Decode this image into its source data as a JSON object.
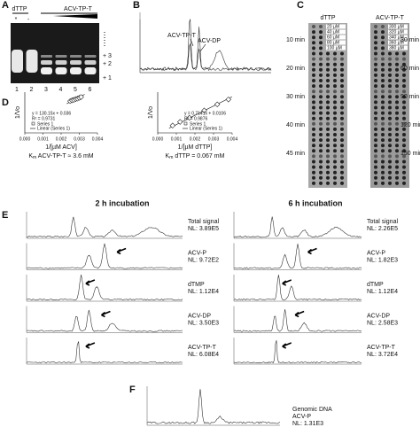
{
  "panel_a": {
    "label": "A",
    "dttp": "dTTP",
    "acv_tp_t": "ACV-TP-T",
    "marks": [
      "*",
      "-"
    ],
    "lanes": [
      "1",
      "2",
      "3",
      "4",
      "5",
      "6"
    ],
    "bands": [
      "+ 3",
      "+ 2",
      "+ 1"
    ]
  },
  "panel_b": {
    "label": "B",
    "peaks": [
      "ACV-TP-T",
      "ACV-DP"
    ]
  },
  "panel_c": {
    "label": "C",
    "strips": [
      {
        "title": "dTTP",
        "concentrations": [
          "20 µM",
          "40 µM",
          "60 µM",
          "80 µM",
          "100 µM"
        ],
        "times": [
          "10 min",
          "20 min",
          "30 min",
          "40 min",
          "45 min"
        ]
      },
      {
        "title": "ACV-TP-T",
        "concentrations": [
          "300 µM",
          "320 µM",
          "340 µM",
          "360 µM",
          "380 µM"
        ],
        "times": [
          "30 min",
          "60 min",
          "90 min",
          "120 min",
          "150 min"
        ]
      }
    ]
  },
  "panel_d": {
    "label": "D",
    "plots": [
      {
        "y_label": "1/Vo",
        "equation": "y = 130.15x + 0.036",
        "r2": "R² = 0.9731",
        "legend": [
          "Series 1",
          "Linear (Series 1)"
        ],
        "x_label": "1/[µM ACV]",
        "km_symbol": "K",
        "km_sub": "m",
        "km_text": " ACV-TP-T ≈ 3.6 mM",
        "xlim": [
          0,
          0.004
        ],
        "ylim": [
          0,
          1
        ],
        "xticks": [
          {
            "value": 0,
            "label": "0.000"
          },
          {
            "value": 0.001,
            "label": "0.001"
          },
          {
            "value": 0.002,
            "label": "0.002"
          },
          {
            "value": 0.003,
            "label": "0.003"
          },
          {
            "value": 0.004,
            "label": "0.004"
          }
        ],
        "x": [
          0.0025,
          0.0026,
          0.0027,
          0.0028,
          0.0029,
          0.003,
          0.0031
        ],
        "y": [
          0.78,
          0.8,
          0.81,
          0.83,
          0.84,
          0.86,
          0.88
        ]
      },
      {
        "y_label": "1/Vo",
        "equation": "y = 0.7141x + 0.0106",
        "r2": "R² = 0.9876",
        "legend": [
          "Series 1",
          "Linear (Series 1)"
        ],
        "x_label": "1/[µM dTTP]",
        "km_symbol": "K",
        "km_sub": "m",
        "km_text": " dTTP = 0.067 mM",
        "xlim": [
          0,
          0.004
        ],
        "ylim": [
          0,
          1
        ],
        "xticks": [
          {
            "value": 0,
            "label": "0.000"
          },
          {
            "value": 0.001,
            "label": "0.001"
          },
          {
            "value": 0.002,
            "label": "0.002"
          },
          {
            "value": 0.003,
            "label": "0.003"
          },
          {
            "value": 0.004,
            "label": "0.004"
          }
        ],
        "x": [
          0.0008,
          0.0012,
          0.0017,
          0.0025,
          0.0032,
          0.0038
        ],
        "y": [
          0.18,
          0.27,
          0.37,
          0.55,
          0.7,
          0.82
        ]
      }
    ]
  },
  "panel_e": {
    "label": "E",
    "columns": [
      {
        "title": "2 h incubation",
        "rows": [
          {
            "name": "Total signal",
            "nl": "NL: 3.89E5"
          },
          {
            "name": "ACV-P",
            "nl": "NL: 9.72E2"
          },
          {
            "name": "dTMP",
            "nl": "NL: 1.12E4"
          },
          {
            "name": "ACV-DP",
            "nl": "NL: 3.50E3"
          },
          {
            "name": "ACV-TP-T",
            "nl": "NL: 6.08E4"
          }
        ]
      },
      {
        "title": "6 h incubation",
        "rows": [
          {
            "name": "Total signal",
            "nl": "NL: 2.26E5"
          },
          {
            "name": "ACV-P",
            "nl": "NL: 1.82E3"
          },
          {
            "name": "dTMP",
            "nl": "NL: 1.12E4"
          },
          {
            "name": "ACV-DP",
            "nl": "NL: 2.58E3"
          },
          {
            "name": "ACV-TP-T",
            "nl": "NL: 3.72E4"
          }
        ]
      }
    ]
  },
  "panel_f": {
    "label": "F",
    "lines": [
      "Genomic DNA",
      "ACV-P",
      "NL: 1.31E3"
    ]
  }
}
